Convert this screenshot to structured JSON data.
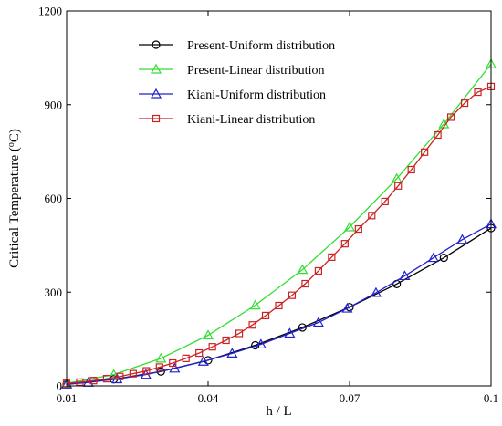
{
  "chart_data": {
    "type": "line",
    "xlabel": "h / L",
    "ylabel": {
      "prefix": "Critical Temperature (",
      "sup": "o",
      "suffix": "C)"
    },
    "xlim": [
      0.01,
      0.1
    ],
    "ylim": [
      0,
      1200
    ],
    "xticks": [
      0.01,
      0.04,
      0.07,
      0.1
    ],
    "xtick_labels": [
      "0.01",
      "0.04",
      "0.07",
      "0.1"
    ],
    "yticks": [
      0,
      300,
      600,
      900,
      1200
    ],
    "ytick_labels": [
      "0",
      "300",
      "600",
      "900",
      "1200"
    ],
    "grid": false,
    "legend_position": "top-left",
    "series": [
      {
        "name": "Present-Uniform distribution",
        "color": "#000000",
        "marker": "circle",
        "x": [
          0.01,
          0.02,
          0.03,
          0.04,
          0.05,
          0.06,
          0.07,
          0.08,
          0.09,
          0.1
        ],
        "y": [
          5,
          21,
          46,
          82,
          130,
          187,
          252,
          326,
          410,
          505
        ]
      },
      {
        "name": "Present-Linear distribution",
        "color": "#33dd33",
        "marker": "triangle",
        "x": [
          0.01,
          0.02,
          0.03,
          0.04,
          0.05,
          0.06,
          0.07,
          0.08,
          0.09,
          0.1
        ],
        "y": [
          8,
          36,
          88,
          162,
          258,
          372,
          508,
          663,
          838,
          1030
        ]
      },
      {
        "name": "Kiani-Uniform distribution",
        "color": "#2222cc",
        "marker": "triangle",
        "x": [
          0.01,
          0.0146,
          0.0207,
          0.0268,
          0.0329,
          0.039,
          0.0451,
          0.0512,
          0.0573,
          0.0634,
          0.0695,
          0.0756,
          0.0817,
          0.0878,
          0.0939,
          0.1
        ],
        "y": [
          5,
          11,
          22,
          36,
          56,
          78,
          104,
          133,
          168,
          203,
          248,
          298,
          352,
          410,
          468,
          518
        ]
      },
      {
        "name": "Kiani-Linear distribution",
        "color": "#cc2222",
        "marker": "square",
        "x": [
          0.01,
          0.0128,
          0.0157,
          0.0185,
          0.0213,
          0.0241,
          0.0269,
          0.0297,
          0.0325,
          0.0353,
          0.0381,
          0.0409,
          0.0438,
          0.0466,
          0.0494,
          0.0522,
          0.055,
          0.0578,
          0.0606,
          0.0634,
          0.0662,
          0.069,
          0.0719,
          0.0747,
          0.0775,
          0.0803,
          0.0831,
          0.0859,
          0.0887,
          0.0915,
          0.0944,
          0.0972,
          0.1
        ],
        "y": [
          8,
          12,
          17,
          23,
          30,
          39,
          48,
          60,
          73,
          88,
          105,
          125,
          146,
          168,
          195,
          225,
          257,
          290,
          327,
          368,
          412,
          455,
          502,
          545,
          590,
          640,
          692,
          748,
          803,
          860,
          905,
          940,
          958
        ]
      }
    ]
  }
}
